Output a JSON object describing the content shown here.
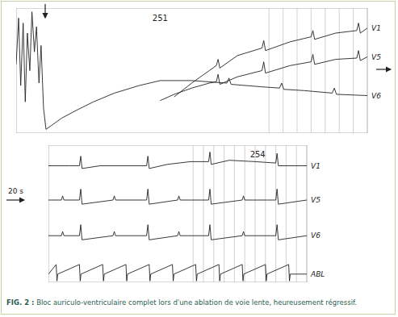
{
  "chart_data": [
    {
      "type": "line",
      "xlim": [
        0,
        100
      ],
      "ylim": [
        0,
        100
      ],
      "tick_labels": false,
      "annotations": [
        {
          "text": "251",
          "x": 41,
          "y": 92
        }
      ],
      "markers": [
        72,
        76,
        80,
        84,
        88,
        92,
        96
      ],
      "series": [
        {
          "name": "V1",
          "color": "#222222",
          "x": [
            45,
            50,
            55,
            57,
            57.5,
            58,
            63,
            70,
            70.5,
            71,
            78,
            84,
            84.5,
            85,
            91,
            97,
            97.5,
            98,
            100
          ],
          "values": [
            29,
            40,
            50,
            54,
            59,
            52,
            62,
            68,
            74,
            66,
            73,
            77,
            82,
            75,
            80,
            82,
            88,
            80,
            84
          ]
        },
        {
          "name": "V5",
          "color": "#222222",
          "x": [
            41,
            45,
            50,
            55,
            57,
            57.5,
            58,
            63,
            70,
            70.5,
            71,
            78,
            84,
            84.5,
            85,
            91,
            97,
            97.5,
            98,
            100
          ],
          "values": [
            26,
            31,
            36,
            40,
            41,
            47,
            39,
            45,
            50,
            57,
            48,
            54,
            57,
            63,
            55,
            59,
            60,
            66,
            58,
            61
          ]
        },
        {
          "name": "V6",
          "color": "#222222",
          "x": [
            0,
            0.7,
            1.3,
            2,
            2.6,
            3.2,
            3.9,
            4.5,
            5.2,
            5.8,
            6.5,
            7.1,
            7.8,
            8.5,
            10,
            13,
            17,
            22,
            28,
            35,
            41,
            50,
            60,
            60.6,
            61.2,
            70,
            75,
            75.6,
            76.2,
            82,
            90,
            90.6,
            91.2,
            100
          ],
          "values": [
            55,
            92,
            38,
            88,
            25,
            80,
            50,
            97,
            65,
            85,
            40,
            70,
            20,
            3,
            6,
            12,
            18,
            25,
            32,
            38,
            42,
            42,
            40,
            44,
            39,
            37,
            36,
            40,
            35,
            34,
            32,
            36,
            31,
            30
          ]
        }
      ]
    },
    {
      "type": "line",
      "xlim": [
        0,
        100
      ],
      "ylim": [
        0,
        100
      ],
      "tick_labels": false,
      "annotations": [
        {
          "text": "254",
          "x": 81,
          "y": 93
        }
      ],
      "markers": [
        56,
        60,
        64,
        68,
        72,
        76,
        80,
        84,
        88,
        92,
        96
      ],
      "series": [
        {
          "name": "V1",
          "color": "#222222",
          "x": [
            0,
            8,
            12,
            12.5,
            13,
            20,
            30,
            38,
            38.5,
            39,
            46,
            55,
            62,
            62.5,
            63,
            70,
            80,
            88,
            88.5,
            89,
            95,
            100
          ],
          "values": [
            85,
            85,
            85,
            92,
            83,
            85,
            85,
            85,
            92,
            83,
            86,
            88,
            88,
            95,
            86,
            89,
            88,
            87,
            94,
            85,
            85,
            85
          ]
        },
        {
          "name": "V5",
          "color": "#222222",
          "x": [
            0,
            5,
            5.5,
            6,
            12,
            12.5,
            13,
            25,
            25.5,
            26,
            38,
            38.5,
            39,
            50,
            50.5,
            51,
            62,
            62.5,
            63,
            75,
            75.5,
            76,
            88,
            88.5,
            89,
            100
          ],
          "values": [
            60,
            60,
            63,
            60,
            60,
            68,
            57,
            60,
            63,
            60,
            60,
            68,
            57,
            60,
            63,
            60,
            60,
            68,
            57,
            60,
            63,
            60,
            60,
            68,
            57,
            60
          ]
        },
        {
          "name": "V6",
          "color": "#222222",
          "x": [
            0,
            5,
            5.5,
            6,
            12,
            12.5,
            13,
            25,
            25.5,
            26,
            38,
            38.5,
            39,
            50,
            50.5,
            51,
            62,
            62.5,
            63,
            75,
            75.5,
            76,
            88,
            88.5,
            89,
            100
          ],
          "values": [
            34,
            34,
            37,
            34,
            34,
            42,
            31,
            34,
            37,
            34,
            34,
            42,
            31,
            34,
            37,
            34,
            34,
            42,
            31,
            34,
            37,
            34,
            34,
            42,
            31,
            34
          ]
        },
        {
          "name": "ABL",
          "color": "#222222",
          "x": [
            0,
            3,
            3.3,
            3.6,
            12,
            12.3,
            12.6,
            21,
            21.3,
            21.6,
            30,
            30.3,
            30.6,
            39,
            39.3,
            39.6,
            48,
            48.3,
            48.6,
            57,
            57.3,
            57.6,
            66,
            66.3,
            66.6,
            75,
            75.3,
            75.6,
            84,
            84.3,
            84.6,
            93,
            93.3,
            93.6,
            100
          ],
          "values": [
            6,
            13,
            1,
            6,
            13,
            1,
            6,
            13,
            1,
            6,
            13,
            1,
            6,
            13,
            1,
            6,
            13,
            1,
            6,
            13,
            1,
            6,
            13,
            1,
            6,
            13,
            1,
            6,
            13,
            1,
            6,
            13,
            1,
            6,
            6
          ]
        }
      ]
    }
  ],
  "figure": {
    "arrow_label": "20 s",
    "caption_label": "FIG. 2 :",
    "caption": "Bloc auriculo-ventriculaire complet lors d'une ablation de voie lente, heureusement régressif."
  }
}
